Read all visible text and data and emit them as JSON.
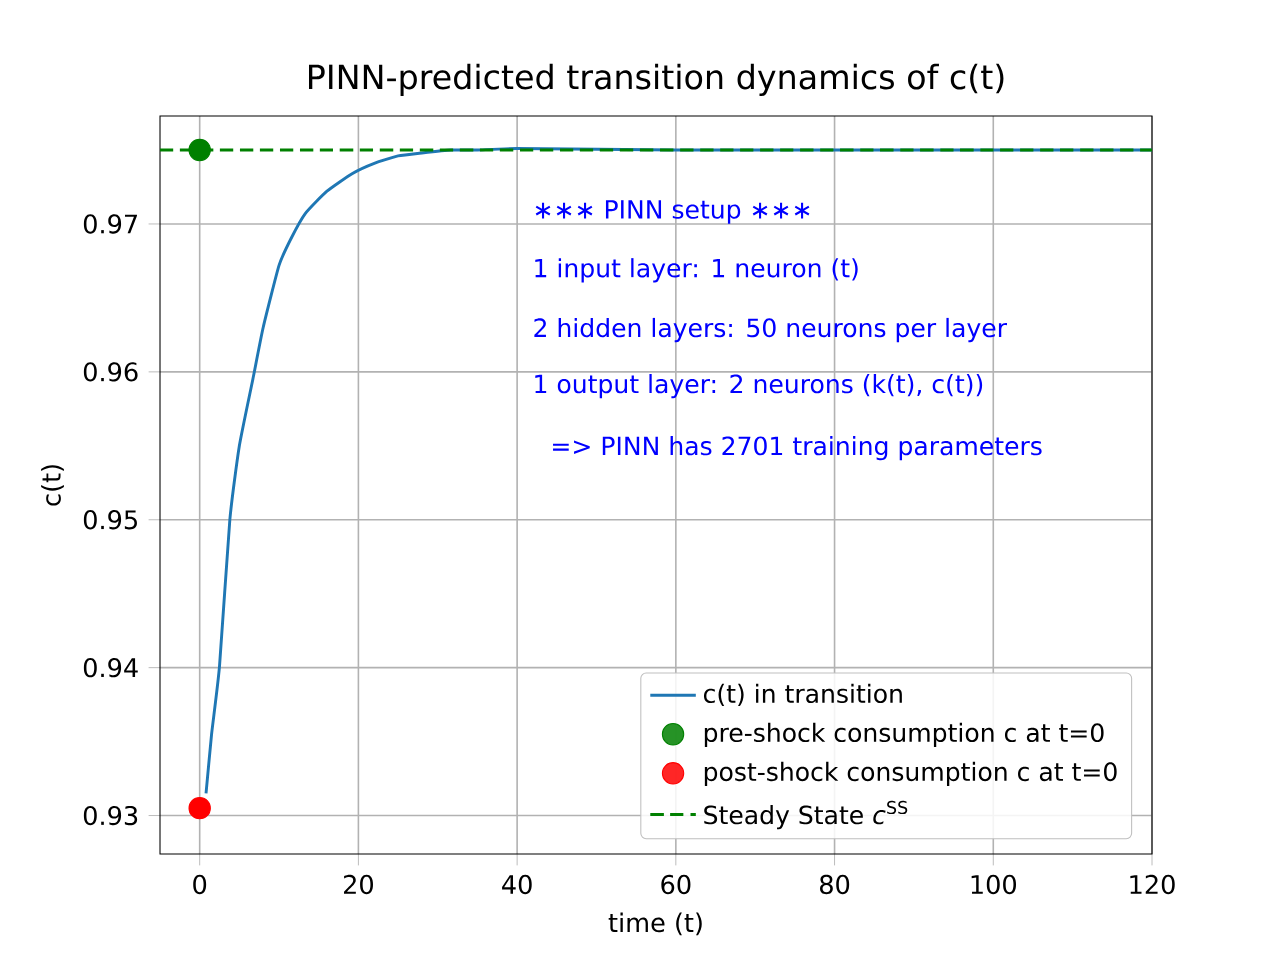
{
  "chart_data": {
    "type": "line",
    "title": "PINN-predicted transition dynamics of c(t)",
    "xlabel": "time (t)",
    "ylabel": "c(t)",
    "annotations": [
      "∗∗∗ PINN setup ∗∗∗",
      "1 input layer:   1 neuron (t)",
      "2 hidden layers: 50 neurons per layer",
      "1 output layer:  2 neurons (k(t), c(t))",
      "=> PINN has 2701 training parameters"
    ],
    "xlim": [
      -5,
      120
    ],
    "ylim": [
      0.9274,
      0.9773
    ],
    "xticks": [
      0,
      20,
      40,
      60,
      80,
      100,
      120
    ],
    "yticks": [
      0.93,
      0.94,
      0.95,
      0.96,
      0.97
    ],
    "grid": true,
    "legend": "bottom right",
    "series": [
      {
        "name": "c(t) in transition",
        "color": "#1f77b4",
        "marker": "none",
        "line_style": "solid",
        "x": [
          0.8,
          1.5,
          2.5,
          3.8,
          5,
          6.7,
          8,
          10,
          11.5,
          13.3,
          16,
          19.2,
          22,
          25,
          28,
          31.7,
          35,
          40,
          60,
          80,
          100,
          120
        ],
        "values": [
          0.9315,
          0.9355,
          0.9401,
          0.95,
          0.955,
          0.9595,
          0.963,
          0.9672,
          0.969,
          0.9707,
          0.9722,
          0.9734,
          0.9741,
          0.9746,
          0.9748,
          0.975,
          0.975,
          0.9751,
          0.975,
          0.975,
          0.975,
          0.975
        ]
      },
      {
        "name": "pre-shock consumption c at t=0",
        "type": "scatter",
        "color": "#008000",
        "marker": "circle",
        "x": [
          0
        ],
        "values": [
          0.975
        ]
      },
      {
        "name": "post-shock consumption c at t=0",
        "type": "scatter",
        "color": "#ff0000",
        "marker": "circle",
        "x": [
          0
        ],
        "values": [
          0.9305
        ]
      },
      {
        "name": "Steady State *c*$^{SS}$",
        "type": "line",
        "color": "#008000",
        "marker": "none",
        "line_style": "dashed",
        "x": [
          -5,
          120
        ],
        "values": [
          0.975,
          0.975
        ]
      }
    ]
  }
}
